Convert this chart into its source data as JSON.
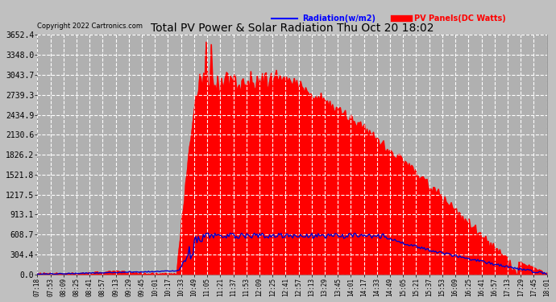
{
  "title": "Total PV Power & Solar Radiation Thu Oct 20 18:02",
  "copyright": "Copyright 2022 Cartronics.com",
  "legend_radiation": "Radiation(w/m2)",
  "legend_pv": "PV Panels(DC Watts)",
  "bg_color": "#c8c8c8",
  "plot_bg_color": "#b8b8b8",
  "grid_color": "#ffffff",
  "title_color": "#000000",
  "radiation_color": "#0000ff",
  "pv_color": "#ff0000",
  "pv_fill_color": "#ff0000",
  "yticks": [
    0.0,
    304.4,
    608.7,
    913.1,
    1217.5,
    1521.8,
    1826.2,
    2130.6,
    2434.9,
    2739.3,
    3043.7,
    3348.0,
    3652.4
  ],
  "ymax": 3652.4,
  "x_tick_labels": [
    "07:18",
    "07:53",
    "08:09",
    "08:25",
    "08:41",
    "08:57",
    "09:13",
    "09:29",
    "09:45",
    "10:01",
    "10:17",
    "10:33",
    "10:49",
    "11:05",
    "11:21",
    "11:37",
    "11:53",
    "12:09",
    "12:25",
    "12:41",
    "12:57",
    "13:13",
    "13:29",
    "13:45",
    "14:01",
    "14:17",
    "14:33",
    "14:49",
    "15:05",
    "15:21",
    "15:37",
    "15:53",
    "16:09",
    "16:25",
    "16:41",
    "16:57",
    "17:13",
    "17:29",
    "17:45",
    "18:01"
  ],
  "num_points": 400
}
